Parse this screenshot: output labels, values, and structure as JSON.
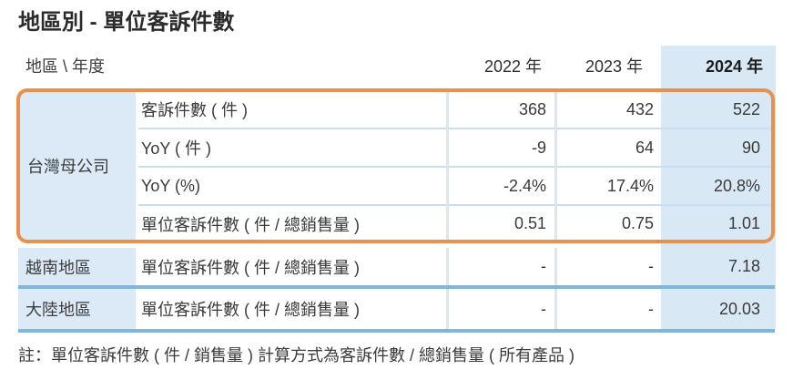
{
  "title": "地區別 - 單位客訴件數",
  "note": "註：單位客訴件數 ( 件 / 銷售量 ) 計算方式為客訴件數 / 總銷售量 ( 所有產品 )",
  "table": {
    "corner_label": "地區 \\ 年度",
    "year_headers": {
      "y2022": "2022 年",
      "y2023": "2023 年",
      "y2024": "2024 年"
    },
    "highlighted_year": "2024 年",
    "taiwan_group": {
      "region": "台灣母公司",
      "rows": [
        {
          "metric": "客訴件數 ( 件 )",
          "y2022": "368",
          "y2023": "432",
          "y2024": "522"
        },
        {
          "metric": "YoY ( 件 )",
          "y2022": "-9",
          "y2023": "64",
          "y2024": "90"
        },
        {
          "metric": "YoY (%)",
          "y2022": "-2.4%",
          "y2023": "17.4%",
          "y2024": "20.8%"
        },
        {
          "metric": "單位客訴件數 ( 件 / 總銷售量 )",
          "y2022": "0.51",
          "y2023": "0.75",
          "y2024": "1.01"
        }
      ]
    },
    "vietnam_row": {
      "region": "越南地區",
      "metric": "單位客訴件數 ( 件 / 總銷售量 )",
      "y2022": "-",
      "y2023": "-",
      "y2024": "7.18"
    },
    "china_row": {
      "region": "大陸地區",
      "metric": "單位客訴件數 ( 件 / 總銷售量 )",
      "y2022": "-",
      "y2023": "-",
      "y2024": "20.03"
    }
  },
  "colors": {
    "accent_orange": "#E8914E",
    "highlight_column_blue": "#D9E8F5",
    "region_cell_blue": "#DCE9F6",
    "thick_separator_blue": "#7FB7DA",
    "thin_separator_blue": "#C9DFF1"
  }
}
